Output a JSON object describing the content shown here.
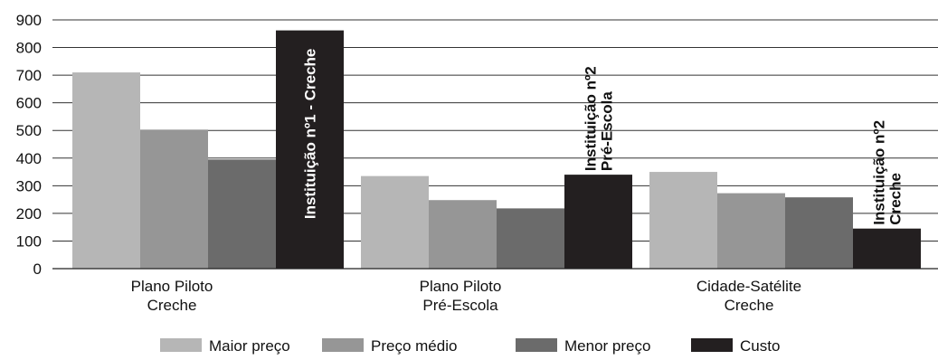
{
  "chart_data": {
    "type": "bar",
    "categories": [
      [
        "Plano Piloto",
        "Creche"
      ],
      [
        "Plano Piloto",
        "Pré-Escola"
      ],
      [
        "Cidade-Satélite",
        "Creche"
      ]
    ],
    "series": [
      {
        "name": "Maior preço",
        "color": "#b6b6b6",
        "values": [
          710,
          335,
          350
        ]
      },
      {
        "name": "Preço médio",
        "color": "#969696",
        "values": [
          503,
          248,
          273
        ]
      },
      {
        "name": "Menor preço",
        "color": "#6b6b6b",
        "values": [
          395,
          218,
          258
        ]
      },
      {
        "name": "Custo",
        "color": "#231f20",
        "values": [
          862,
          340,
          145
        ]
      }
    ],
    "annotations": [
      {
        "category_index": 0,
        "lines": [
          "Instituição nº1 - Creche"
        ],
        "inside_bar": true
      },
      {
        "category_index": 1,
        "lines": [
          "Instituição nº2",
          "Pré-Escola"
        ],
        "inside_bar": false
      },
      {
        "category_index": 2,
        "lines": [
          "Instituição nº2",
          "Creche"
        ],
        "inside_bar": false
      }
    ],
    "ylim": [
      0,
      900
    ],
    "yticks": [
      0,
      100,
      200,
      300,
      400,
      500,
      600,
      700,
      800,
      900
    ],
    "grid": true,
    "legend_position": "bottom",
    "title": "",
    "xlabel": "",
    "ylabel": ""
  }
}
